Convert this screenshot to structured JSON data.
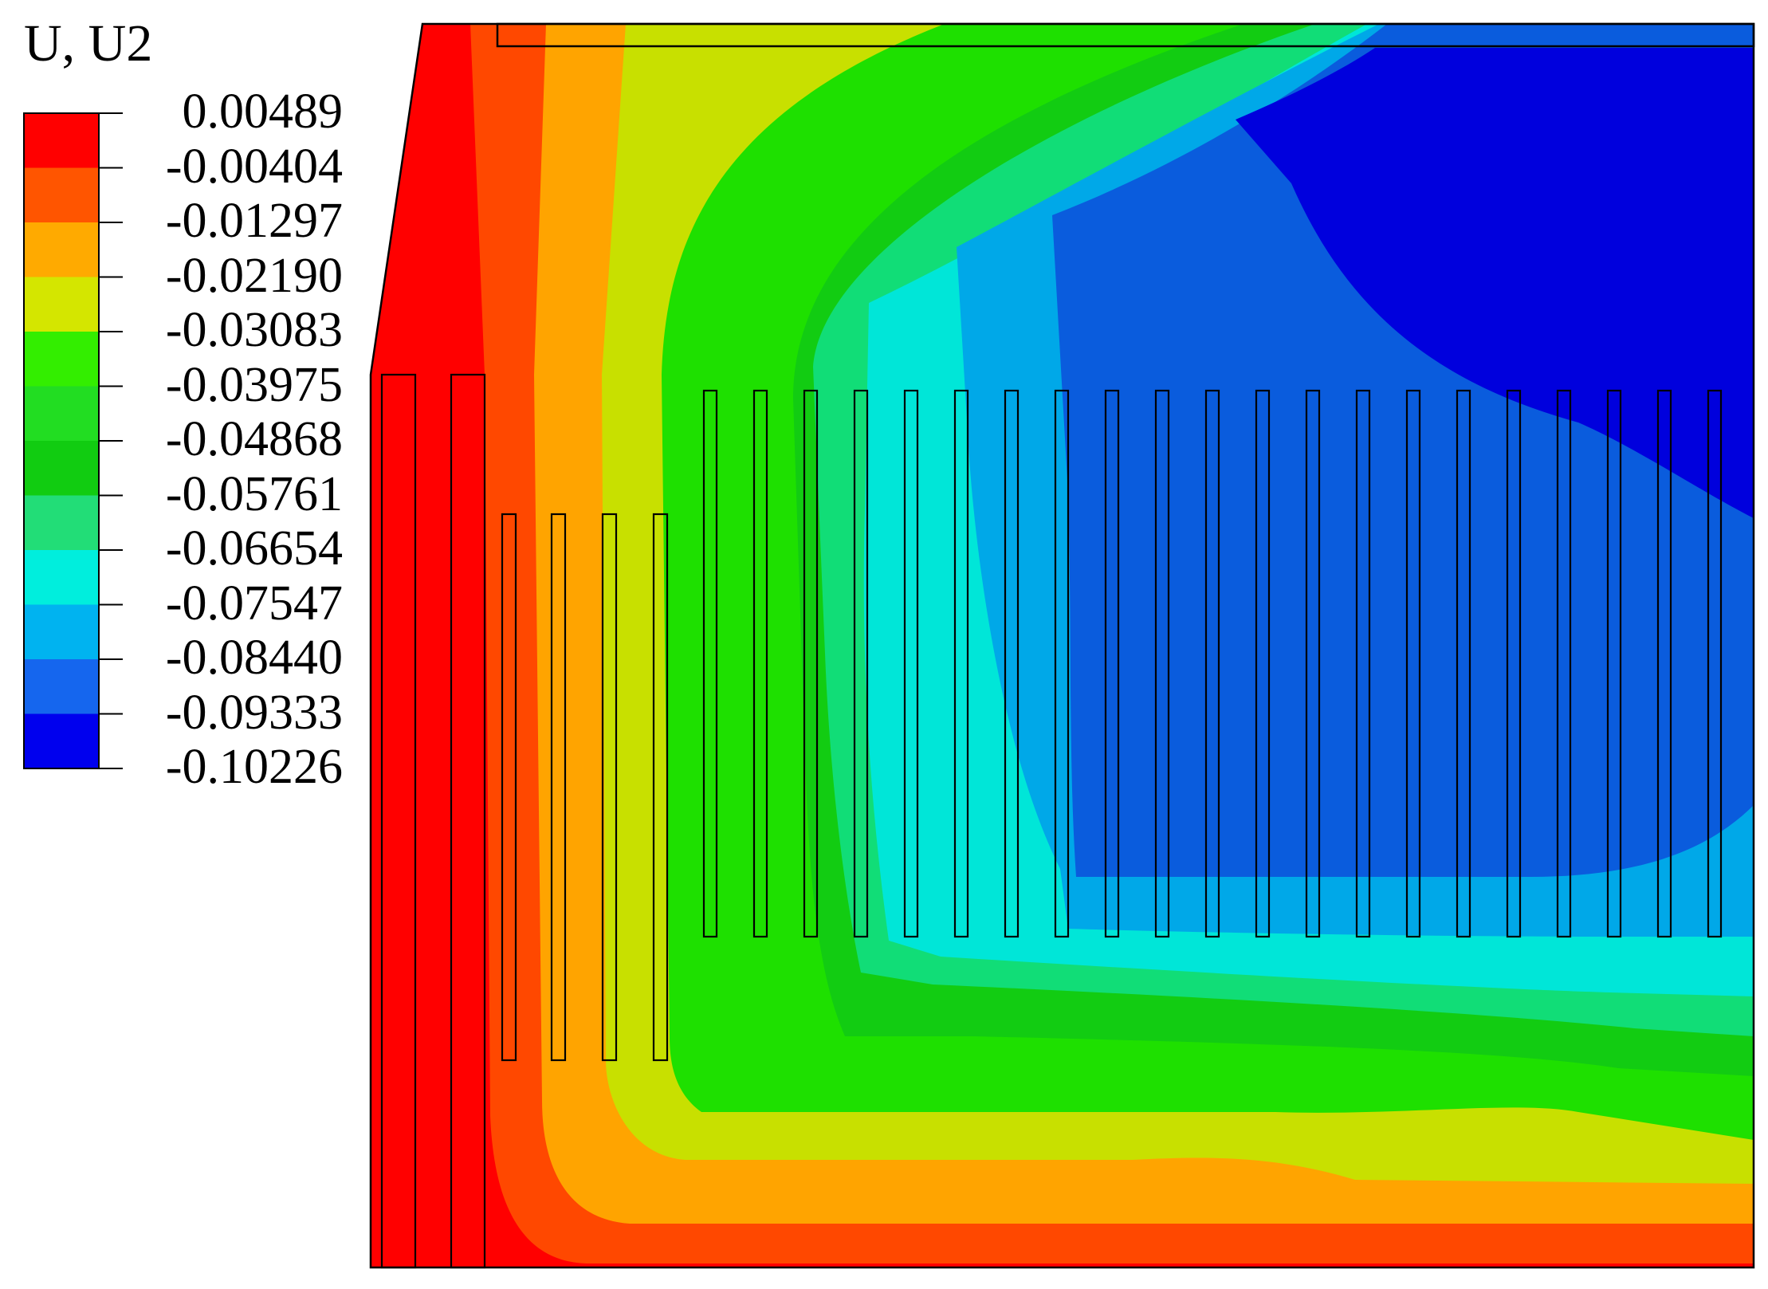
{
  "legend": {
    "title": "U, U2",
    "values": [
      "0.00489",
      "-0.00404",
      "-0.01297",
      "-0.02190",
      "-0.03083",
      "-0.03975",
      "-0.04868",
      "-0.05761",
      "-0.06654",
      "-0.07547",
      "-0.08440",
      "-0.09333",
      "-0.10226"
    ],
    "band_colors": [
      "#ff0000",
      "#ff5500",
      "#ffaa00",
      "#d4e600",
      "#33ee00",
      "#22dd22",
      "#11cc11",
      "#22dd77",
      "#00eedd",
      "#00b3f0",
      "#1566ee",
      "#0000ee"
    ]
  },
  "contour_colors": {
    "red": "#ff0000",
    "red_orange": "#ff4800",
    "orange": "#ffa400",
    "yellow_green": "#c8e000",
    "green": "#1ee000",
    "green_dark": "#12cc12",
    "sea_green": "#11dd77",
    "cyan": "#00e6d8",
    "sky_blue": "#00a8e8",
    "blue": "#0a5cdd",
    "deep_blue": "#0000dd"
  }
}
